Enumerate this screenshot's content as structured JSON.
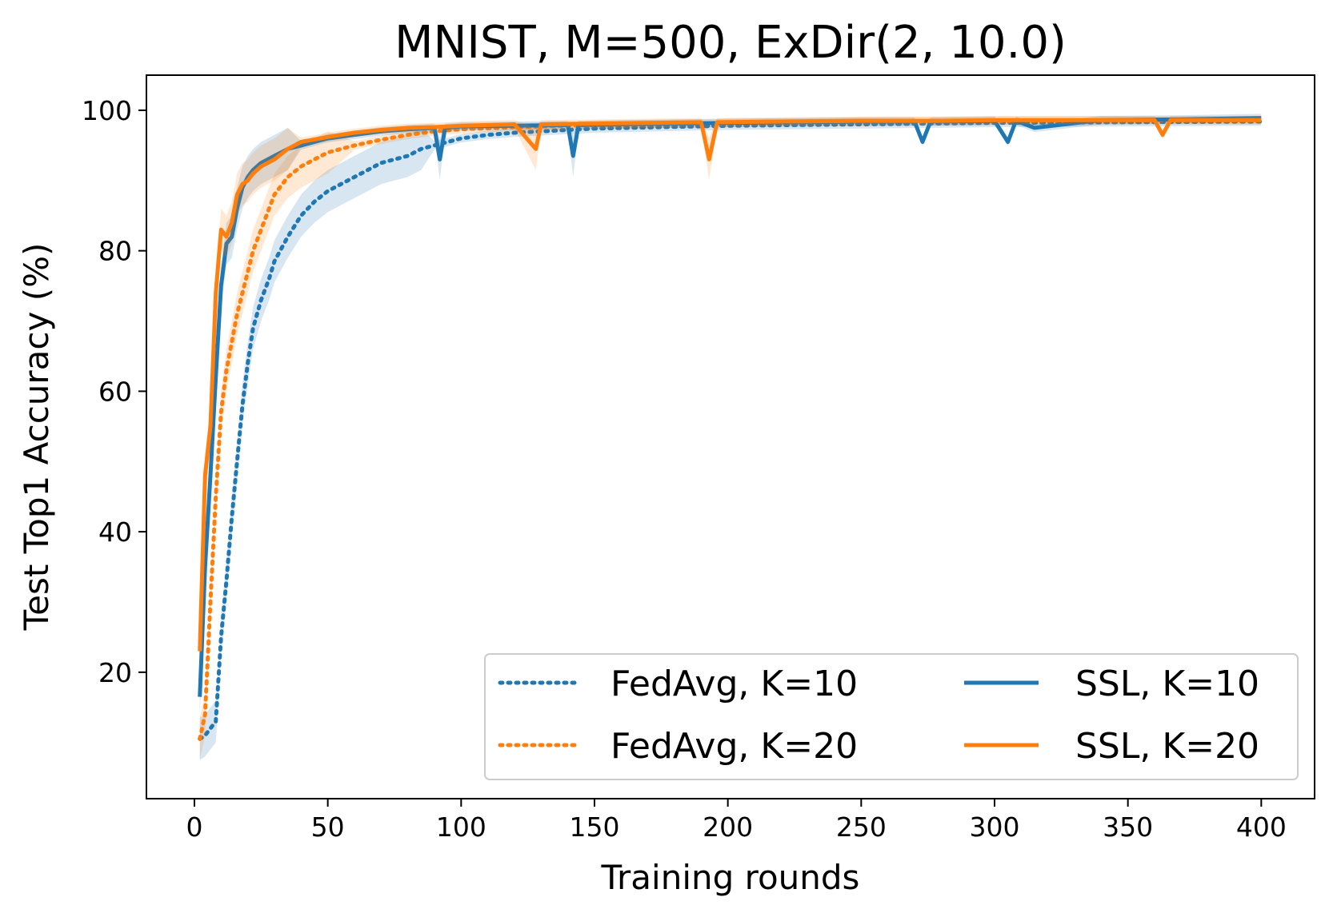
{
  "chart_data": {
    "type": "line",
    "title": "MNIST, M=500, ExDir(2, 10.0)",
    "xlabel": "Training rounds",
    "ylabel": "Test Top1 Accuracy (%)",
    "xlim": [
      -18,
      420
    ],
    "ylim": [
      2,
      105
    ],
    "xticks": [
      0,
      50,
      100,
      150,
      200,
      250,
      300,
      350,
      400
    ],
    "yticks": [
      20,
      40,
      60,
      80,
      100
    ],
    "grid": false,
    "legend_position": "lower-right",
    "colors": {
      "blue": "#1f77b4",
      "orange": "#ff7f0e"
    },
    "series": [
      {
        "name": "FedAvg, K=10",
        "style": "dotted",
        "color": "#1f77b4",
        "x": [
          2,
          4,
          6,
          8,
          10,
          12,
          14,
          16,
          18,
          20,
          22,
          25,
          28,
          30,
          35,
          40,
          45,
          50,
          55,
          60,
          65,
          70,
          75,
          80,
          85,
          90,
          95,
          100,
          110,
          120,
          130,
          140,
          150,
          175,
          200,
          250,
          300,
          350,
          400
        ],
        "values": [
          10.5,
          11.0,
          12.0,
          13.0,
          25.0,
          33.0,
          42.0,
          50.0,
          58.0,
          64.0,
          69.0,
          73.0,
          76.0,
          78.5,
          82.0,
          85.0,
          87.0,
          88.5,
          89.5,
          90.5,
          91.5,
          92.5,
          93.0,
          93.5,
          94.5,
          95.0,
          95.5,
          96.0,
          96.5,
          96.8,
          97.0,
          97.2,
          97.4,
          97.6,
          97.8,
          98.0,
          98.2,
          98.3,
          98.4
        ]
      },
      {
        "name": "FedAvg, K=20",
        "style": "dotted",
        "color": "#ff7f0e",
        "x": [
          2,
          4,
          6,
          8,
          10,
          12,
          14,
          16,
          18,
          20,
          22,
          25,
          28,
          30,
          35,
          40,
          45,
          50,
          60,
          70,
          80,
          90,
          100,
          120,
          150,
          200,
          250,
          300,
          350,
          400
        ],
        "values": [
          10.5,
          14.0,
          30.0,
          45.0,
          57.0,
          63.0,
          67.0,
          71.0,
          74.0,
          77.0,
          80.0,
          83.0,
          86.0,
          88.0,
          90.5,
          92.0,
          93.0,
          94.0,
          95.0,
          95.8,
          96.5,
          97.0,
          97.3,
          97.6,
          97.9,
          98.2,
          98.4,
          98.5,
          98.6,
          98.6
        ]
      },
      {
        "name": "SSL, K=10",
        "style": "solid",
        "color": "#1f77b4",
        "x": [
          2,
          4,
          6,
          8,
          10,
          12,
          14,
          16,
          18,
          20,
          22,
          25,
          30,
          35,
          40,
          50,
          60,
          70,
          80,
          90,
          92,
          94,
          100,
          120,
          140,
          142,
          144,
          160,
          180,
          200,
          230,
          250,
          270,
          273,
          276,
          300,
          305,
          308,
          315,
          340,
          370,
          400
        ],
        "values": [
          16.5,
          35.0,
          48.0,
          62.0,
          75.0,
          81.0,
          82.0,
          86.0,
          89.0,
          90.5,
          91.5,
          92.5,
          93.5,
          94.5,
          95.0,
          96.0,
          96.5,
          97.0,
          97.3,
          97.5,
          93.0,
          97.5,
          97.7,
          97.8,
          97.9,
          93.5,
          97.9,
          98.0,
          98.1,
          98.2,
          98.3,
          98.4,
          98.4,
          95.5,
          98.4,
          98.5,
          95.5,
          98.5,
          97.5,
          98.6,
          98.7,
          98.9
        ]
      },
      {
        "name": "SSL, K=20",
        "style": "solid",
        "color": "#ff7f0e",
        "x": [
          2,
          4,
          6,
          8,
          10,
          12,
          14,
          16,
          18,
          20,
          22,
          25,
          30,
          35,
          40,
          50,
          60,
          70,
          80,
          90,
          100,
          120,
          128,
          130,
          150,
          170,
          190,
          193,
          196,
          220,
          250,
          280,
          300,
          330,
          360,
          363,
          366,
          400
        ],
        "values": [
          23.0,
          48.0,
          55.0,
          74.0,
          83.0,
          82.0,
          84.0,
          88.0,
          89.5,
          90.0,
          91.0,
          92.0,
          93.0,
          94.5,
          95.5,
          96.2,
          96.8,
          97.2,
          97.5,
          97.6,
          97.8,
          98.0,
          94.5,
          98.0,
          98.1,
          98.2,
          98.3,
          93.0,
          98.3,
          98.4,
          98.5,
          98.5,
          98.6,
          98.6,
          98.6,
          96.5,
          98.6,
          98.6
        ]
      }
    ]
  }
}
